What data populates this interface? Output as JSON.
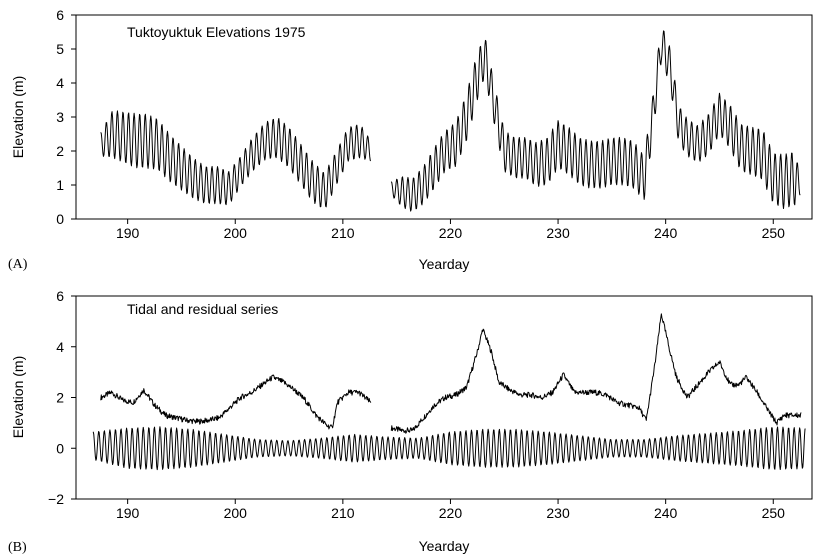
{
  "chart_data": [
    {
      "type": "line",
      "panel_label": "(A)",
      "title": "Tuktoyuktuk Elevations 1975",
      "xlabel": "Yearday",
      "ylabel": "Elevation (m)",
      "xlim": [
        185.2,
        253.6
      ],
      "ylim": [
        0,
        6
      ],
      "xticks": [
        190,
        200,
        210,
        220,
        230,
        240,
        250
      ],
      "yticks": [
        0,
        1,
        2,
        3,
        4,
        5,
        6
      ],
      "grid": false,
      "series": [
        {
          "segments": [
            {
              "x": [
                187.5,
                188.6,
                189.7,
                190.8,
                191.6,
                192.8,
                193.9,
                195.0,
                196.1,
                197.2,
                198.3,
                199.4,
                200.5,
                201.6,
                202.8,
                203.9,
                205.0,
                206.1,
                207.2,
                208.3,
                209.4,
                210.5,
                211.6,
                212.6
              ],
              "y": [
                2.2,
                2.5,
                2.4,
                2.3,
                2.3,
                2.2,
                1.8,
                1.5,
                1.2,
                1.0,
                1.0,
                0.9,
                1.4,
                1.9,
                2.3,
                2.4,
                2.1,
                1.6,
                1.1,
                0.8,
                1.5,
                2.2,
                2.3,
                2.0
              ],
              "amplitude": [
                0.35,
                0.7,
                0.75,
                0.8,
                0.8,
                0.75,
                0.7,
                0.65,
                0.6,
                0.55,
                0.55,
                0.5,
                0.45,
                0.5,
                0.55,
                0.6,
                0.6,
                0.6,
                0.6,
                0.55,
                0.5,
                0.5,
                0.5,
                0.3
              ]
            },
            {
              "x": [
                214.5,
                215.5,
                216.5,
                217.5,
                218.5,
                219.5,
                220.5,
                221.5,
                222.5,
                223.2,
                224.0,
                225.0,
                226.0,
                227.0,
                228.0,
                229.0,
                230.0,
                231.0,
                232.0,
                233.0,
                234.0,
                235.0,
                236.0,
                237.0,
                238.0,
                238.8,
                239.6,
                240.4,
                241.2,
                242.0,
                243.0,
                244.0,
                245.0,
                246.0,
                247.0,
                248.0,
                249.0,
                250.0,
                251.0,
                252.0,
                252.5
              ],
              "y": [
                0.9,
                0.8,
                0.7,
                1.0,
                1.5,
                2.0,
                2.2,
                3.0,
                4.2,
                4.8,
                3.5,
                2.0,
                1.8,
                1.8,
                1.6,
                1.7,
                2.2,
                2.0,
                1.7,
                1.6,
                1.6,
                1.7,
                1.7,
                1.6,
                1.2,
                3.0,
                5.2,
                4.5,
                2.8,
                2.4,
                2.2,
                2.5,
                3.1,
                2.7,
                2.1,
                2.0,
                1.9,
                1.2,
                1.1,
                1.2,
                1.0
              ],
              "amplitude": [
                0.2,
                0.45,
                0.5,
                0.55,
                0.6,
                0.6,
                0.65,
                0.7,
                0.7,
                0.6,
                0.6,
                0.6,
                0.6,
                0.6,
                0.65,
                0.7,
                0.7,
                0.7,
                0.7,
                0.7,
                0.7,
                0.7,
                0.7,
                0.7,
                0.65,
                0.6,
                0.55,
                0.55,
                0.55,
                0.55,
                0.55,
                0.6,
                0.6,
                0.65,
                0.7,
                0.7,
                0.75,
                0.75,
                0.8,
                0.8,
                0.3
              ]
            }
          ]
        }
      ]
    },
    {
      "type": "line",
      "panel_label": "(B)",
      "title": "Tidal and residual series",
      "xlabel": "Yearday",
      "ylabel": "Elevation (m)",
      "xlim": [
        185.2,
        253.6
      ],
      "ylim": [
        -2,
        6
      ],
      "xticks": [
        190,
        200,
        210,
        220,
        230,
        240,
        250
      ],
      "yticks": [
        -2,
        0,
        2,
        4,
        6
      ],
      "grid": false,
      "series": [
        {
          "segments": [
            {
              "x": [
                187.5,
                188.5,
                189.5,
                190.5,
                191.5,
                192.5,
                193.5,
                194.5,
                195.5,
                196.5,
                197.5,
                198.5,
                199.5,
                200.5,
                201.5,
                202.5,
                203.5,
                204.5,
                205.5,
                206.5,
                207.5,
                208.5,
                209.0,
                209.5,
                210.5,
                211.5,
                212.6
              ],
              "y": [
                2.0,
                2.2,
                1.9,
                1.8,
                2.3,
                1.7,
                1.3,
                1.2,
                1.1,
                1.05,
                1.1,
                1.2,
                1.6,
                2.0,
                2.2,
                2.5,
                2.8,
                2.6,
                2.3,
                1.9,
                1.3,
                0.9,
                0.8,
                1.8,
                2.2,
                2.2,
                1.8
              ]
            },
            {
              "x": [
                214.5,
                215.5,
                216.5,
                217.5,
                218.5,
                219.5,
                220.5,
                221.5,
                222.5,
                223.0,
                223.8,
                224.5,
                225.5,
                226.5,
                227.5,
                228.5,
                229.5,
                230.5,
                231.5,
                232.5,
                233.5,
                234.5,
                235.5,
                236.5,
                237.5,
                238.2,
                239.0,
                239.6,
                240.3,
                241.0,
                242.0,
                243.0,
                244.0,
                245.0,
                246.0,
                246.8,
                247.5,
                248.5,
                249.5,
                250.3,
                251.0,
                252.0,
                252.6
              ],
              "y": [
                0.8,
                0.7,
                0.7,
                1.2,
                1.7,
                2.0,
                2.1,
                2.4,
                3.8,
                4.7,
                3.8,
                2.6,
                2.3,
                2.1,
                2.1,
                2.0,
                2.2,
                2.9,
                2.2,
                2.2,
                2.2,
                2.1,
                1.8,
                1.7,
                1.6,
                1.1,
                3.3,
                5.3,
                4.0,
                2.8,
                2.0,
                2.5,
                3.0,
                3.4,
                2.5,
                2.5,
                2.8,
                2.2,
                1.5,
                1.0,
                1.3,
                1.3,
                1.3
              ]
            }
          ]
        },
        {
          "x": [
            186.8,
            190,
            193,
            196,
            199,
            202,
            205,
            208,
            211,
            214,
            217,
            220,
            223,
            226,
            229,
            232,
            235,
            238,
            241,
            244,
            247,
            250,
            253
          ],
          "y": [
            0.1,
            0.0,
            0.0,
            0.0,
            0.0,
            0.0,
            0.0,
            0.0,
            0.0,
            0.0,
            0.0,
            0.0,
            0.0,
            0.0,
            0.0,
            0.0,
            0.0,
            0.0,
            0.0,
            0.0,
            0.0,
            0.0,
            0.0
          ],
          "amplitude": [
            0.55,
            0.8,
            0.85,
            0.75,
            0.55,
            0.35,
            0.3,
            0.4,
            0.55,
            0.45,
            0.4,
            0.65,
            0.75,
            0.75,
            0.65,
            0.5,
            0.35,
            0.35,
            0.5,
            0.6,
            0.7,
            0.85,
            0.8
          ]
        }
      ]
    }
  ]
}
